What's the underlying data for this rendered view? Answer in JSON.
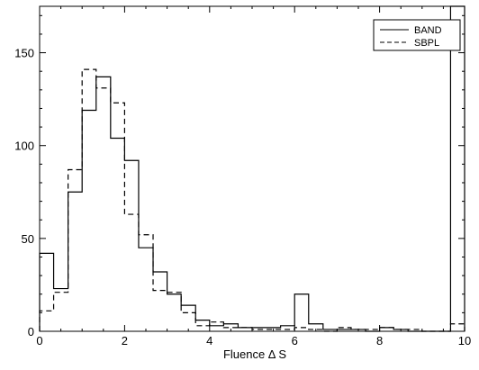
{
  "chart_data": {
    "type": "histogram",
    "xlabel": "Fluence Δ S",
    "ylabel": "",
    "xlim": [
      0,
      10
    ],
    "ylim": [
      0,
      175
    ],
    "x_ticks": [
      0,
      2,
      4,
      6,
      8,
      10
    ],
    "y_ticks": [
      0,
      50,
      100,
      150
    ],
    "grid": false,
    "legend_position": "top-right",
    "bin_edges": [
      0,
      0.33,
      0.67,
      1.0,
      1.33,
      1.67,
      2.0,
      2.33,
      2.67,
      3.0,
      3.33,
      3.67,
      4.0,
      4.33,
      4.67,
      5.0,
      5.33,
      5.67,
      6.0,
      6.33,
      6.67,
      7.0,
      7.33,
      7.67,
      8.0,
      8.33,
      8.67,
      9.0,
      9.33,
      9.67,
      10.0
    ],
    "series": [
      {
        "name": "BAND",
        "style": "solid",
        "color": "#000000",
        "values": [
          42,
          23,
          75,
          119,
          137,
          104,
          92,
          45,
          32,
          20,
          14,
          6,
          3,
          4,
          2,
          2,
          2,
          3,
          20,
          4,
          1,
          1,
          1,
          0,
          2,
          1,
          0,
          0,
          0,
          175
        ]
      },
      {
        "name": "SBPL",
        "style": "dashed",
        "color": "#000000",
        "values": [
          11,
          21,
          87,
          141,
          131,
          123,
          63,
          52,
          22,
          21,
          10,
          3,
          5,
          2,
          2,
          1,
          1,
          1,
          2,
          1,
          0,
          2,
          1,
          1,
          2,
          1,
          1,
          0,
          0,
          4
        ]
      }
    ]
  }
}
